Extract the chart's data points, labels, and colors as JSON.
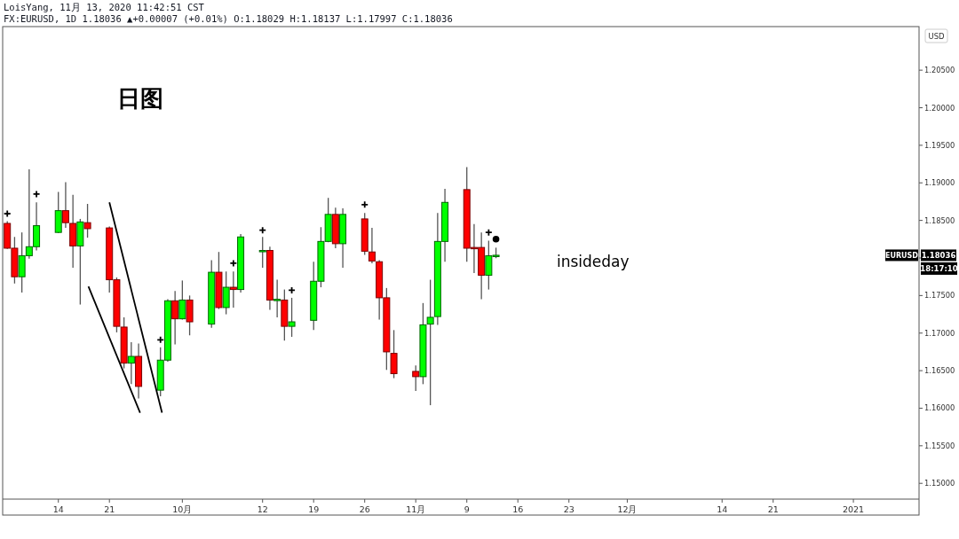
{
  "chart_data": {
    "type": "candlestick",
    "title": "LoisYang, 11月 13, 2020 11:42:51 CST",
    "subtitle": "FX:EURUSD, 1D 1.18036 ▲+0.00007 (+0.01%) O:1.18029 H:1.18137 L:1.17997 C:1.18036",
    "annotations": [
      "日图",
      "insideday",
      "USD",
      "EURUSD",
      "1.18036",
      "18:17:10"
    ],
    "x": [
      "2020-09-07",
      "2020-09-08",
      "2020-09-09",
      "2020-09-10",
      "2020-09-11",
      "2020-09-14",
      "2020-09-15",
      "2020-09-16",
      "2020-09-17",
      "2020-09-18",
      "2020-09-21",
      "2020-09-22",
      "2020-09-23",
      "2020-09-24",
      "2020-09-25",
      "2020-09-28",
      "2020-09-29",
      "2020-09-30",
      "2020-10-01",
      "2020-10-02",
      "2020-10-05",
      "2020-10-06",
      "2020-10-07",
      "2020-10-08",
      "2020-10-09",
      "2020-10-12",
      "2020-10-13",
      "2020-10-14",
      "2020-10-15",
      "2020-10-16",
      "2020-10-19",
      "2020-10-20",
      "2020-10-21",
      "2020-10-22",
      "2020-10-23",
      "2020-10-26",
      "2020-10-27",
      "2020-10-28",
      "2020-10-29",
      "2020-10-30",
      "2020-11-02",
      "2020-11-03",
      "2020-11-04",
      "2020-11-05",
      "2020-11-06",
      "2020-11-09",
      "2020-11-10",
      "2020-11-11",
      "2020-11-12",
      "2020-11-13"
    ],
    "ohlc": [
      [
        1.1846,
        1.1849,
        1.1812,
        1.1813
      ],
      [
        1.1813,
        1.1828,
        1.1766,
        1.1775
      ],
      [
        1.1775,
        1.1834,
        1.1754,
        1.1803
      ],
      [
        1.1803,
        1.1918,
        1.1799,
        1.1815
      ],
      [
        1.1815,
        1.1874,
        1.181,
        1.1843
      ],
      [
        1.1834,
        1.1888,
        1.1833,
        1.1863
      ],
      [
        1.1863,
        1.1901,
        1.184,
        1.1847
      ],
      [
        1.1846,
        1.1884,
        1.1787,
        1.1816
      ],
      [
        1.1816,
        1.1852,
        1.1738,
        1.1848
      ],
      [
        1.1847,
        1.1872,
        1.1827,
        1.1839
      ],
      [
        1.184,
        1.1842,
        1.1754,
        1.1771
      ],
      [
        1.1771,
        1.1774,
        1.1701,
        1.1709
      ],
      [
        1.1708,
        1.1721,
        1.1653,
        1.166
      ],
      [
        1.166,
        1.1688,
        1.1632,
        1.1669
      ],
      [
        1.1669,
        1.1686,
        1.1613,
        1.1629
      ],
      [
        1.1624,
        1.1681,
        1.1616,
        1.1664
      ],
      [
        1.1664,
        1.1745,
        1.1662,
        1.1743
      ],
      [
        1.1743,
        1.1756,
        1.1685,
        1.1719
      ],
      [
        1.1719,
        1.177,
        1.1718,
        1.1744
      ],
      [
        1.1744,
        1.175,
        1.1697,
        1.1715
      ],
      [
        1.1712,
        1.1797,
        1.1707,
        1.1781
      ],
      [
        1.1781,
        1.1808,
        1.1732,
        1.1734
      ],
      [
        1.1734,
        1.1782,
        1.1725,
        1.1761
      ],
      [
        1.1761,
        1.1782,
        1.1734,
        1.1758
      ],
      [
        1.1758,
        1.1832,
        1.1754,
        1.1828
      ],
      [
        1.1809,
        1.1828,
        1.1787,
        1.181
      ],
      [
        1.181,
        1.1815,
        1.1731,
        1.1744
      ],
      [
        1.1744,
        1.1771,
        1.1721,
        1.1745
      ],
      [
        1.1744,
        1.1758,
        1.169,
        1.1709
      ],
      [
        1.1709,
        1.1747,
        1.1695,
        1.1715
      ],
      [
        1.1717,
        1.1795,
        1.1704,
        1.1769
      ],
      [
        1.1769,
        1.1841,
        1.1761,
        1.1822
      ],
      [
        1.1822,
        1.188,
        1.1821,
        1.1858
      ],
      [
        1.1858,
        1.1867,
        1.1813,
        1.1819
      ],
      [
        1.1819,
        1.1866,
        1.1787,
        1.1858
      ],
      [
        1.1852,
        1.186,
        1.1804,
        1.1809
      ],
      [
        1.1808,
        1.184,
        1.1793,
        1.1796
      ],
      [
        1.1795,
        1.1797,
        1.1718,
        1.1747
      ],
      [
        1.1747,
        1.176,
        1.1651,
        1.1675
      ],
      [
        1.1673,
        1.1704,
        1.164,
        1.1646
      ],
      [
        1.1649,
        1.1657,
        1.1623,
        1.1642
      ],
      [
        1.1642,
        1.174,
        1.1632,
        1.1711
      ],
      [
        1.1712,
        1.1771,
        1.1604,
        1.1721
      ],
      [
        1.1722,
        1.186,
        1.1711,
        1.1822
      ],
      [
        1.1822,
        1.1892,
        1.1795,
        1.1874
      ],
      [
        1.1891,
        1.1921,
        1.1795,
        1.1813
      ],
      [
        1.1814,
        1.1845,
        1.178,
        1.1813
      ],
      [
        1.1814,
        1.1834,
        1.1745,
        1.1777
      ],
      [
        1.1777,
        1.1823,
        1.1758,
        1.1803
      ],
      [
        1.18029,
        1.18137,
        1.17997,
        1.18036
      ]
    ],
    "series": [
      {
        "type": "scatter",
        "marker": "cross",
        "color": "#000000",
        "x": [
          "2020-09-07",
          "2020-09-11",
          "2020-09-28",
          "2020-10-08",
          "2020-10-12",
          "2020-10-16",
          "2020-10-26",
          "2020-11-12"
        ],
        "values": [
          1.1859,
          1.1885,
          1.1691,
          1.1793,
          1.1837,
          1.1757,
          1.1871,
          1.1834
        ]
      },
      {
        "type": "scatter",
        "marker": "circle",
        "color": "#000000",
        "x": [
          "2020-11-13"
        ],
        "values": [
          1.1825
        ]
      },
      {
        "type": "line",
        "color": "#000000",
        "x": [
          "2020-09-21",
          "2020-09-28T05:00"
        ],
        "values": [
          1.1874,
          1.1594
        ]
      },
      {
        "type": "line",
        "color": "#000000",
        "x": [
          "2020-09-18T03:00",
          "2020-09-25T05:00"
        ],
        "values": [
          1.1762,
          1.1594
        ]
      }
    ],
    "xlim": [
      "2020-09-06",
      "2021-01-10"
    ],
    "ylim": [
      1.1479,
      1.2108
    ],
    "xticks": [
      {
        "value": "2020-09-14",
        "label": "14"
      },
      {
        "value": "2020-09-21",
        "label": "21"
      },
      {
        "value": "2020-10-01",
        "label": "10月"
      },
      {
        "value": "2020-10-12",
        "label": "12"
      },
      {
        "value": "2020-10-19",
        "label": "19"
      },
      {
        "value": "2020-10-26",
        "label": "26"
      },
      {
        "value": "2020-11-02",
        "label": "11月"
      },
      {
        "value": "2020-11-09",
        "label": "9"
      },
      {
        "value": "2020-11-16",
        "label": "16"
      },
      {
        "value": "2020-11-23",
        "label": "23"
      },
      {
        "value": "2020-12-01",
        "label": "12月"
      },
      {
        "value": "2020-12-14",
        "label": "14"
      },
      {
        "value": "2020-12-21",
        "label": "21"
      },
      {
        "value": "2021-01-01",
        "label": "2021"
      }
    ],
    "yticks": [
      {
        "value": 1.15,
        "label": "1.15000"
      },
      {
        "value": 1.155,
        "label": "1.15500"
      },
      {
        "value": 1.16,
        "label": "1.16000"
      },
      {
        "value": 1.165,
        "label": "1.16500"
      },
      {
        "value": 1.17,
        "label": "1.17000"
      },
      {
        "value": 1.175,
        "label": "1.17500"
      },
      {
        "value": 1.18,
        "label": null
      },
      {
        "value": 1.185,
        "label": "1.18500"
      },
      {
        "value": 1.19,
        "label": "1.19000"
      },
      {
        "value": 1.195,
        "label": "1.19500"
      },
      {
        "value": 1.2,
        "label": "1.20000"
      },
      {
        "value": 1.205,
        "label": "1.20500"
      }
    ],
    "grid": false
  }
}
